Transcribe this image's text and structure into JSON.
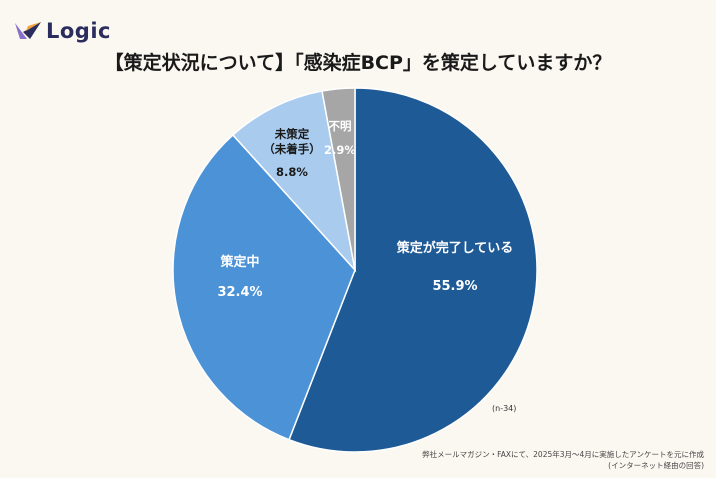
{
  "brand": {
    "name": "Logic",
    "colors": {
      "purple": "#8a6fc9",
      "orange": "#f2a33a",
      "text": "#2b2d5e"
    }
  },
  "title": "【策定状況について】「感染症BCP」を策定していますか？",
  "sample_note": "(n-34)",
  "footnote": {
    "line1": "弊社メールマガジン・FAXにて、2025年3月〜4月に実施したアンケートを元に作成",
    "line2": "(インターネット経由の回答)"
  },
  "chart_data": {
    "type": "pie",
    "slices": [
      {
        "label": "策定が完了している",
        "label_lines": [
          "策定が完了している"
        ],
        "value": 55.9,
        "value_label": "55.9%",
        "color": "#1e5a96"
      },
      {
        "label": "策定中",
        "label_lines": [
          "策定中"
        ],
        "value": 32.4,
        "value_label": "32.4%",
        "color": "#4b92d6"
      },
      {
        "label": "未策定（未着手）",
        "label_lines": [
          "未策定",
          "（未着手）"
        ],
        "value": 8.8,
        "value_label": "8.8%",
        "color": "#a8cbee"
      },
      {
        "label": "不明",
        "label_lines": [
          "不明"
        ],
        "value": 2.9,
        "value_label": "2.9%",
        "color": "#a6a6a6"
      }
    ],
    "start": "12 o'clock",
    "direction": "clockwise"
  }
}
